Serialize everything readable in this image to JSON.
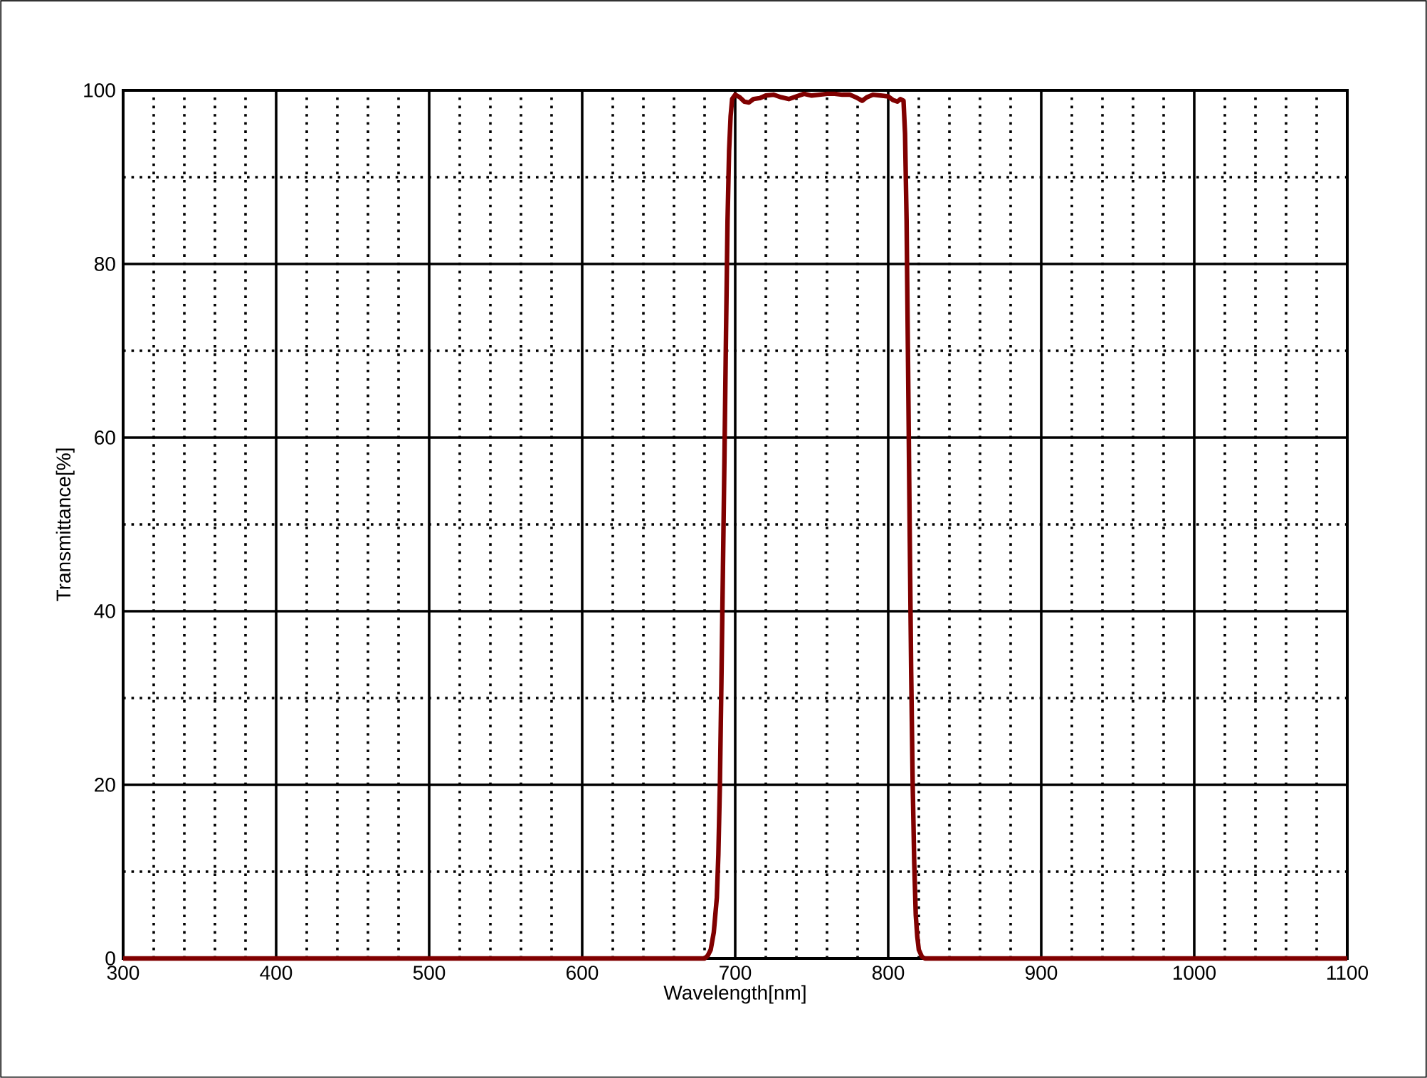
{
  "chart_data": {
    "type": "line",
    "xlabel": "Wavelength[nm]",
    "ylabel": "Transmittance[%]",
    "xlim": [
      300,
      1100
    ],
    "ylim": [
      0,
      100
    ],
    "xticks": [
      300,
      400,
      500,
      600,
      700,
      800,
      900,
      1000,
      1100
    ],
    "yticks": [
      0,
      20,
      40,
      60,
      80,
      100
    ],
    "grid": true,
    "marker": "none",
    "line_style": "solid",
    "series": [
      {
        "color": "#800000",
        "x": [
          300,
          400,
          500,
          600,
          680,
          682,
          684,
          686,
          688,
          689,
          690,
          691,
          692,
          693,
          694,
          695,
          696,
          697,
          698,
          700,
          703,
          706,
          709,
          712,
          716,
          720,
          725,
          730,
          735,
          740,
          745,
          750,
          755,
          760,
          765,
          770,
          775,
          780,
          783,
          786,
          790,
          795,
          800,
          803,
          806,
          808,
          810,
          811,
          812,
          813,
          814,
          815,
          816,
          817,
          818,
          819,
          820,
          822,
          824,
          830,
          900,
          1000,
          1100
        ],
        "values": [
          0,
          0,
          0,
          0,
          0,
          0.3,
          1,
          3,
          7,
          12,
          20,
          32,
          45,
          58,
          72,
          85,
          93,
          97,
          99,
          99.5,
          99.2,
          98.7,
          98.6,
          99,
          99.1,
          99.4,
          99.5,
          99.2,
          99,
          99.3,
          99.6,
          99.4,
          99.5,
          99.6,
          99.6,
          99.5,
          99.5,
          99.1,
          98.8,
          99.2,
          99.5,
          99.4,
          99.3,
          98.9,
          98.7,
          99,
          98.8,
          95,
          85,
          68,
          50,
          33,
          20,
          11,
          5,
          2.5,
          1,
          0.2,
          0,
          0,
          0,
          0,
          0
        ]
      }
    ]
  }
}
